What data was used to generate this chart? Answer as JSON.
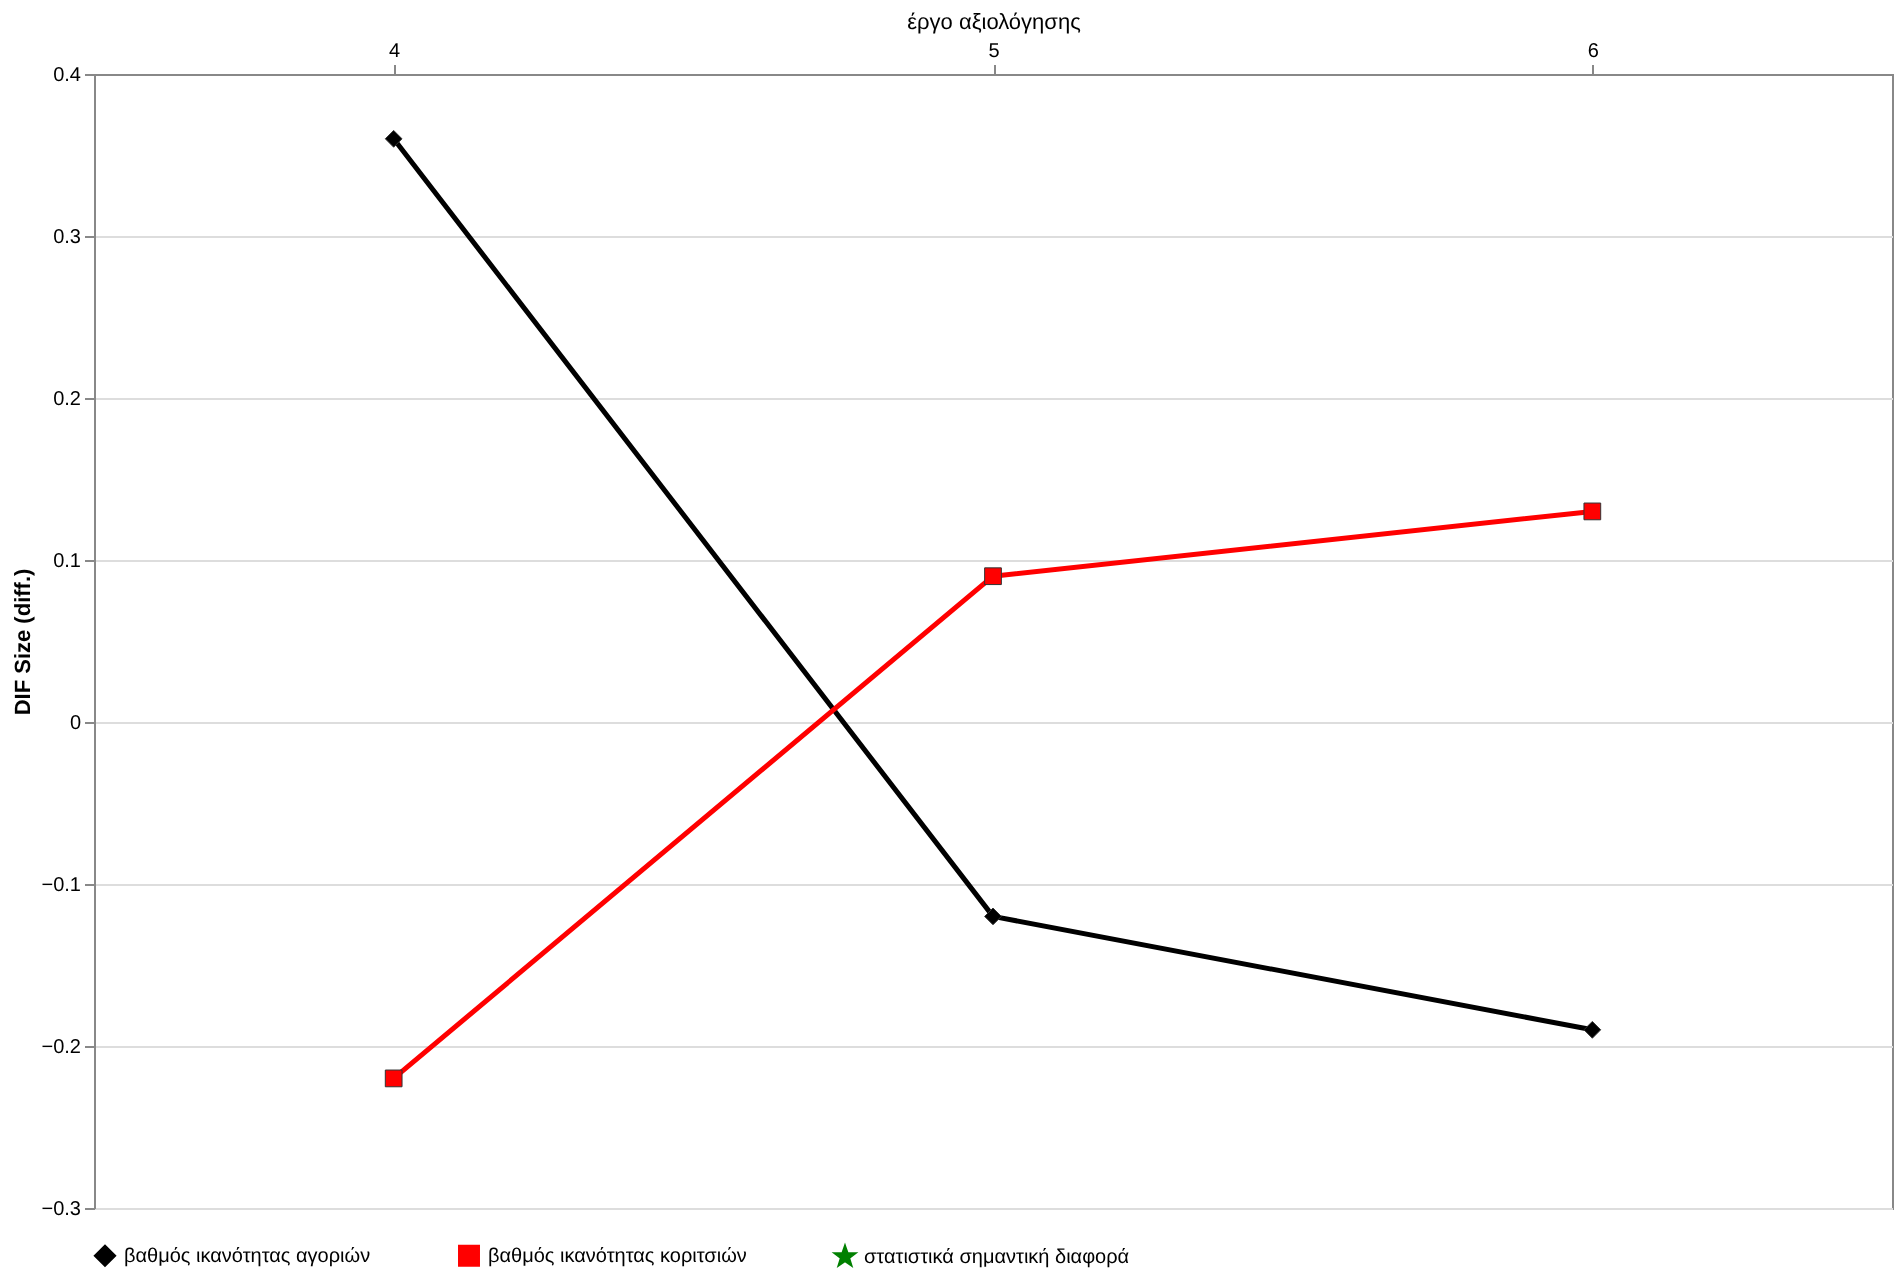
{
  "chart_data": {
    "type": "line",
    "xlabel": "έργο αξιολόγησης",
    "ylabel": "DIF Size (diff.)",
    "categories": [
      "4",
      "5",
      "6"
    ],
    "series": [
      {
        "name": "βαθμός ικανότητας αγοριών",
        "color": "#000000",
        "marker": "diamond",
        "line_style": "solid",
        "values": [
          0.36,
          -0.12,
          -0.19
        ]
      },
      {
        "name": "βαθμός ικανότητας κοριτσιών",
        "color": "#ff0000",
        "marker": "square",
        "line_style": "solid",
        "values": [
          -0.22,
          0.09,
          0.13
        ]
      },
      {
        "name": "στατιστικά σημαντική  διαφορά",
        "color": "#008000",
        "marker": "star",
        "values": [
          null,
          null,
          null
        ]
      }
    ],
    "ylim": [
      -0.3,
      0.4
    ],
    "yticks": [
      -0.3,
      -0.2,
      -0.1,
      0,
      0.1,
      0.2,
      0.3,
      0.4
    ],
    "grid": "y",
    "legend": "bottom"
  }
}
